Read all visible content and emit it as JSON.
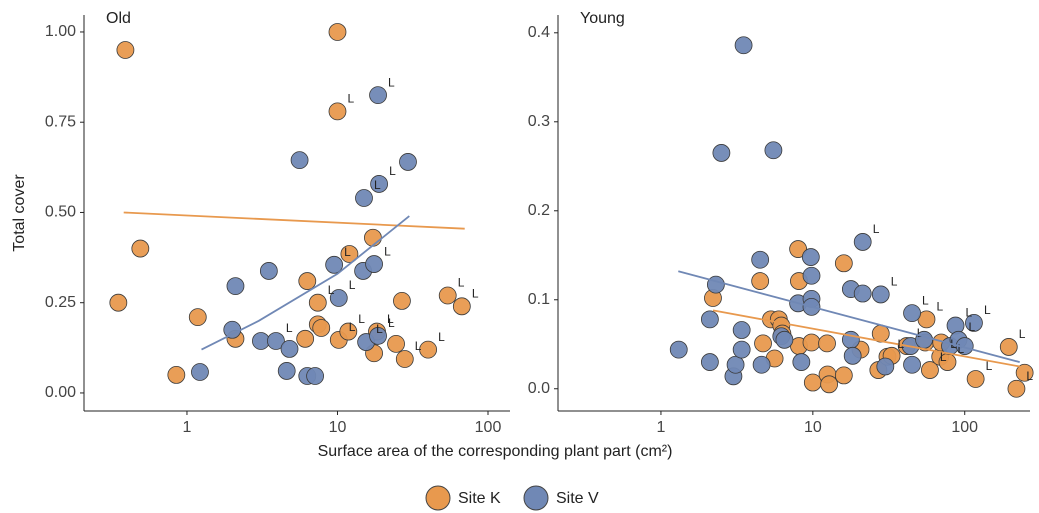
{
  "chart_data": [
    {
      "type": "scatter",
      "title": "Old",
      "ylabel": "Total cover",
      "xlabel": "Surface area of the corresponding plant part (cm²)",
      "xscale": "log",
      "xlim": [
        0.207,
        140
      ],
      "xticks": [
        1,
        10,
        100
      ],
      "ylim": [
        -0.05,
        1.047
      ],
      "yticks": [
        {
          "value": 0,
          "label": "0.00"
        },
        {
          "value": 0.25,
          "label": "0.25"
        },
        {
          "value": 0.5,
          "label": "0.50"
        },
        {
          "value": 0.75,
          "label": "0.75"
        },
        {
          "value": 1,
          "label": "1.00"
        }
      ],
      "series": [
        {
          "name": "Site K",
          "color": "#e8994e",
          "x": [
            0.39,
            10,
            0.49,
            0.35,
            0.85,
            1.18,
            2.1,
            6.3,
            10,
            7.4,
            7.4,
            7.8,
            6.1,
            12,
            10.2,
            11.8,
            17.2,
            18.3,
            17.5,
            24.5,
            26.8,
            28,
            40,
            54,
            67
          ],
          "values": [
            0.95,
            1.0,
            0.4,
            0.25,
            0.05,
            0.21,
            0.15,
            0.31,
            0.78,
            0.25,
            0.19,
            0.18,
            0.15,
            0.385,
            0.147,
            0.17,
            0.43,
            0.17,
            0.11,
            0.136,
            0.255,
            0.094,
            0.12,
            0.27,
            0.24
          ],
          "point_labels": [
            null,
            null,
            null,
            null,
            null,
            null,
            null,
            null,
            "L",
            "L",
            null,
            null,
            null,
            null,
            "L",
            "L",
            null,
            "L",
            null,
            null,
            null,
            "L",
            "L",
            "L",
            "L"
          ],
          "fit_x": [
            0.38,
            70
          ],
          "fit_y": [
            0.5,
            0.455
          ]
        },
        {
          "name": "Site V",
          "color": "#7088b5",
          "x": [
            1.22,
            2.1,
            2.0,
            3.1,
            3.5,
            3.9,
            4.8,
            4.6,
            5.6,
            6.3,
            7.1,
            9.5,
            10.2,
            14.8,
            15.0,
            17.5,
            15.5,
            18.6,
            18.9,
            18.6,
            29.4
          ],
          "values": [
            0.058,
            0.296,
            0.175,
            0.144,
            0.338,
            0.144,
            0.122,
            0.061,
            0.645,
            0.047,
            0.047,
            0.355,
            0.263,
            0.338,
            0.54,
            0.357,
            0.141,
            0.158,
            0.579,
            0.825,
            0.64
          ],
          "point_labels": [
            null,
            null,
            null,
            null,
            null,
            "L",
            null,
            null,
            null,
            null,
            null,
            "L",
            "L",
            null,
            "L",
            "L",
            "L",
            "L",
            "L",
            "L",
            null
          ],
          "fit_x": [
            1.25,
            3,
            10,
            30
          ],
          "fit_y": [
            0.12,
            0.2,
            0.33,
            0.49
          ]
        }
      ]
    },
    {
      "type": "scatter",
      "title": "Young",
      "xscale": "log",
      "xlim": [
        0.21,
        269
      ],
      "xticks": [
        1,
        10,
        100
      ],
      "ylim": [
        -0.025,
        0.42
      ],
      "yticks": [
        {
          "value": 0,
          "label": "0.0"
        },
        0.1,
        0.2,
        0.3,
        0.4
      ],
      "series": [
        {
          "name": "Site K",
          "color": "#e8994e",
          "x": [
            2.2,
            4.5,
            4.7,
            5.3,
            5.6,
            5.97,
            6.2,
            6.3,
            8.0,
            8.1,
            8.1,
            9.8,
            10,
            12.4,
            12.5,
            12.8,
            16,
            16,
            20.6,
            28,
            27,
            31,
            33,
            41.5,
            56,
            55,
            59,
            69,
            70,
            77,
            118,
            195,
            219,
            248
          ],
          "values": [
            0.102,
            0.121,
            0.051,
            0.078,
            0.034,
            0.078,
            0.071,
            0.062,
            0.157,
            0.121,
            0.048,
            0.052,
            0.007,
            0.051,
            0.016,
            0.005,
            0.141,
            0.015,
            0.044,
            0.062,
            0.021,
            0.036,
            0.037,
            0.048,
            0.078,
            0.052,
            0.021,
            0.036,
            0.052,
            0.03,
            0.011,
            0.047,
            0,
            0.018
          ],
          "point_labels": [
            null,
            null,
            null,
            null,
            null,
            null,
            null,
            null,
            null,
            null,
            null,
            null,
            null,
            null,
            null,
            null,
            null,
            null,
            null,
            null,
            null,
            "L",
            null,
            "L",
            "L",
            null,
            "L",
            "L",
            null,
            "L",
            "L",
            "L",
            "L",
            null
          ],
          "fit_x": [
            2.2,
            230
          ],
          "fit_y": [
            0.088,
            0.025
          ]
        },
        {
          "name": "Site V",
          "color": "#7088b5",
          "x": [
            1.31,
            2.1,
            2.1,
            2.3,
            2.5,
            3.0,
            3.1,
            3.4,
            3.4,
            3.5,
            4.5,
            4.6,
            5.5,
            6.2,
            6.5,
            8.0,
            8.4,
            9.7,
            9.8,
            9.8,
            9.8,
            17.8,
            18.3,
            17.8,
            21.3,
            21.3,
            28,
            30,
            45,
            44,
            45,
            54,
            80,
            87,
            91,
            100,
            115
          ],
          "values": [
            0.044,
            0.03,
            0.078,
            0.117,
            0.265,
            0.014,
            0.027,
            0.066,
            0.044,
            0.386,
            0.145,
            0.027,
            0.268,
            0.059,
            0.055,
            0.096,
            0.03,
            0.148,
            0.127,
            0.101,
            0.092,
            0.055,
            0.037,
            0.112,
            0.165,
            0.107,
            0.106,
            0.025,
            0.085,
            0.048,
            0.027,
            0.055,
            0.048,
            0.071,
            0.055,
            0.048,
            0.074
          ],
          "point_labels": [
            null,
            null,
            null,
            null,
            null,
            null,
            null,
            null,
            null,
            null,
            null,
            null,
            null,
            null,
            null,
            null,
            null,
            null,
            null,
            null,
            null,
            null,
            null,
            null,
            "L",
            null,
            "L",
            null,
            "L",
            null,
            null,
            null,
            null,
            "L",
            "L",
            null,
            "L"
          ],
          "fit_x": [
            1.3,
            230
          ],
          "fit_y": [
            0.132,
            0.03
          ]
        }
      ]
    }
  ]
}
